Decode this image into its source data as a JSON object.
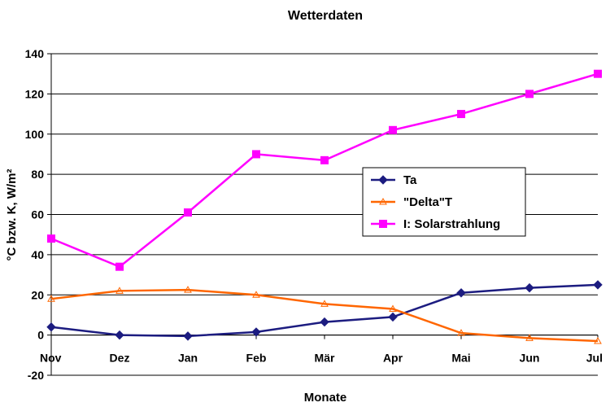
{
  "chart_data": {
    "type": "line",
    "title": "Wetterdaten",
    "xlabel": "Monate",
    "ylabel": "°C bzw. K, W/m²",
    "categories": [
      "Nov",
      "Dez",
      "Jan",
      "Feb",
      "Mär",
      "Apr",
      "Mai",
      "Jun",
      "Jul"
    ],
    "ylim": [
      -20,
      140
    ],
    "yticks": [
      -20,
      0,
      20,
      40,
      60,
      80,
      100,
      120,
      140
    ],
    "grid": true,
    "legend": "right",
    "series": [
      {
        "name": "Ta",
        "color": "#1c1c80",
        "marker": "diamond",
        "values": [
          4,
          0,
          -0.5,
          1.5,
          6.5,
          9,
          21,
          23.5,
          25
        ]
      },
      {
        "name": "\"Delta\"T",
        "color": "#ff6600",
        "marker": "triangle",
        "values": [
          18,
          22,
          22.5,
          20,
          15.5,
          13,
          1,
          -1.5,
          -3
        ]
      },
      {
        "name": "I: Solarstrahlung",
        "color": "#ff00ff",
        "marker": "square",
        "values": [
          48,
          34,
          61,
          90,
          87,
          102,
          110,
          120,
          130
        ]
      }
    ]
  }
}
